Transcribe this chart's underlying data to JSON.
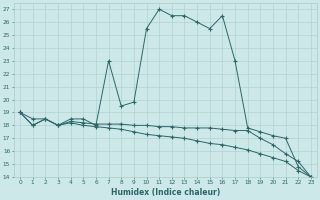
{
  "xlabel": "Humidex (Indice chaleur)",
  "main_x": [
    0,
    1,
    2,
    3,
    4,
    5,
    6,
    7,
    8,
    9,
    10,
    11,
    12,
    13,
    14,
    15,
    16,
    17,
    18,
    19,
    20,
    21,
    22,
    23
  ],
  "main_y": [
    19,
    18,
    18.5,
    18,
    18.5,
    18.5,
    18,
    23,
    19.5,
    19.8,
    25.5,
    27,
    26.5,
    26.5,
    26,
    25.5,
    26.5,
    23,
    17.8,
    17.5,
    17.2,
    17,
    14.8,
    14
  ],
  "line2_x": [
    0,
    1,
    2,
    3,
    4,
    5,
    6,
    7,
    8,
    9,
    10,
    11,
    12,
    13,
    14,
    15,
    16,
    17,
    18,
    19,
    20,
    21,
    22,
    23
  ],
  "line2_y": [
    19,
    18,
    18.5,
    18,
    18.3,
    18.2,
    18.1,
    18.1,
    18.1,
    18.0,
    18.0,
    17.9,
    17.9,
    17.8,
    17.8,
    17.8,
    17.7,
    17.6,
    17.6,
    17.0,
    16.5,
    15.8,
    15.2,
    14
  ],
  "line3_x": [
    0,
    1,
    2,
    3,
    4,
    5,
    6,
    7,
    8,
    9,
    10,
    11,
    12,
    13,
    14,
    15,
    16,
    17,
    18,
    19,
    20,
    21,
    22,
    23
  ],
  "line3_y": [
    19,
    18.5,
    18.5,
    18,
    18.2,
    18.0,
    17.9,
    17.8,
    17.7,
    17.5,
    17.3,
    17.2,
    17.1,
    17.0,
    16.8,
    16.6,
    16.5,
    16.3,
    16.1,
    15.8,
    15.5,
    15.2,
    14.5,
    14
  ],
  "ylim": [
    14,
    27.5
  ],
  "xlim": [
    -0.5,
    23.5
  ],
  "yticks": [
    14,
    15,
    16,
    17,
    18,
    19,
    20,
    21,
    22,
    23,
    24,
    25,
    26,
    27
  ],
  "xticks": [
    0,
    1,
    2,
    3,
    4,
    5,
    6,
    7,
    8,
    9,
    10,
    11,
    12,
    13,
    14,
    15,
    16,
    17,
    18,
    19,
    20,
    21,
    22,
    23
  ],
  "line_color": "#2a6868",
  "bg_color": "#cde8e8",
  "grid_color": "#aacccc"
}
